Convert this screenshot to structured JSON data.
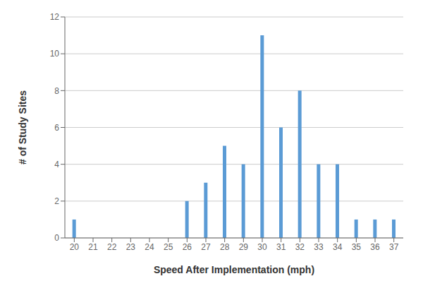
{
  "chart_data": {
    "type": "bar",
    "categories": [
      "20",
      "21",
      "22",
      "23",
      "24",
      "25",
      "26",
      "27",
      "28",
      "29",
      "30",
      "31",
      "32",
      "33",
      "34",
      "35",
      "36",
      "37"
    ],
    "values": [
      1,
      0,
      0,
      0,
      0,
      0,
      2,
      3,
      5,
      4,
      11,
      6,
      8,
      4,
      4,
      1,
      1,
      1
    ],
    "color": "#5B9BD5",
    "xlabel": "Speed After Implementation (mph)",
    "ylabel": "# of Study Sites",
    "ylim": [
      0,
      12
    ],
    "yticks": [
      0,
      2,
      4,
      6,
      8,
      10,
      12
    ],
    "grid": true
  }
}
